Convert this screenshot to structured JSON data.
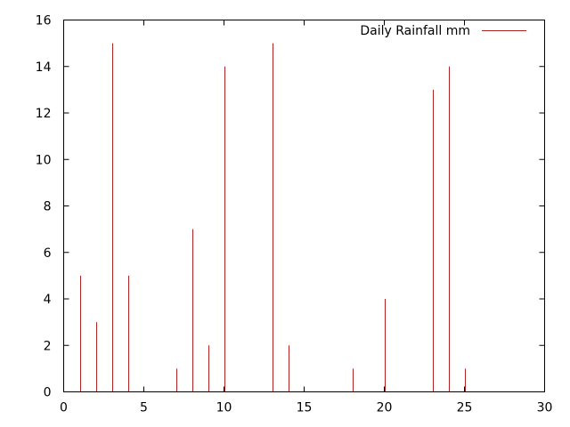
{
  "chart_data": {
    "type": "bar",
    "style": "impulses",
    "series": [
      {
        "name": "Daily Rainfall mm",
        "color": "#b22222",
        "x": [
          1,
          2,
          3,
          4,
          7,
          8,
          9,
          10,
          13,
          14,
          18,
          20,
          23,
          24,
          25
        ],
        "values": [
          5,
          3,
          15,
          5,
          1,
          7,
          2,
          14,
          15,
          2,
          1,
          4,
          13,
          14,
          1
        ]
      }
    ],
    "xlim": [
      0,
      30
    ],
    "ylim": [
      0,
      16
    ],
    "xticks": [
      "0",
      "5",
      "10",
      "15",
      "20",
      "25",
      "30"
    ],
    "yticks": [
      "0",
      "2",
      "4",
      "6",
      "8",
      "10",
      "12",
      "14",
      "16"
    ],
    "grid": false,
    "legend_position": "top-right"
  }
}
